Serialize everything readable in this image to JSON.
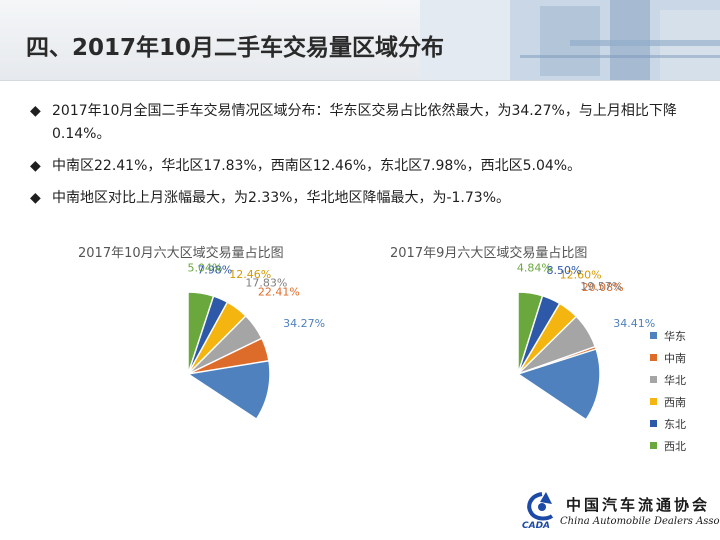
{
  "page": {
    "title": "四、2017年10月二手车交易量区域分布",
    "bullets": [
      "2017年10月全国二手车交易情况区域分布：华东区交易占比依然最大，为34.27%，与上月相比下降0.14%。",
      "中南区22.41%，华北区17.83%，西南区12.46%，东北区7.98%，西北区5.04%。",
      "中南地区对比上月涨幅最大，为2.33%，华北地区降幅最大，为-1.73%。"
    ],
    "bullet_icon": "diamond-bullet-icon"
  },
  "colors": {
    "华东": "#4e81bd",
    "中南": "#dd6c2a",
    "华北": "#a5a5a5",
    "西南": "#f4b511",
    "东北": "#2e58a8",
    "西北": "#6aa83e"
  },
  "chart_data": [
    {
      "type": "pie",
      "title": "2017年10月六大区域交易量占比图",
      "categories": [
        "华东",
        "中南",
        "华北",
        "西南",
        "东北",
        "西北"
      ],
      "values": [
        34.27,
        22.41,
        17.83,
        12.46,
        7.98,
        5.04
      ],
      "labels": [
        "34.27%",
        "22.41%",
        "17.83%",
        "12.46%",
        "7.98%",
        "5.04%"
      ]
    },
    {
      "type": "pie",
      "title": "2017年9月六大区域交易量占比图",
      "categories": [
        "华东",
        "中南",
        "华北",
        "西南",
        "东北",
        "西北"
      ],
      "values": [
        34.41,
        20.08,
        19.57,
        12.6,
        8.5,
        4.84
      ],
      "labels": [
        "34.41%",
        "20.08%",
        "19.57%",
        "12.60%",
        "8.50%",
        "4.84%"
      ],
      "legend_position": "right"
    }
  ],
  "logo": {
    "name_cn": "中国汽车流通协会",
    "name_en": "China Automobile Dealers Association",
    "mark_text": "CADA"
  }
}
